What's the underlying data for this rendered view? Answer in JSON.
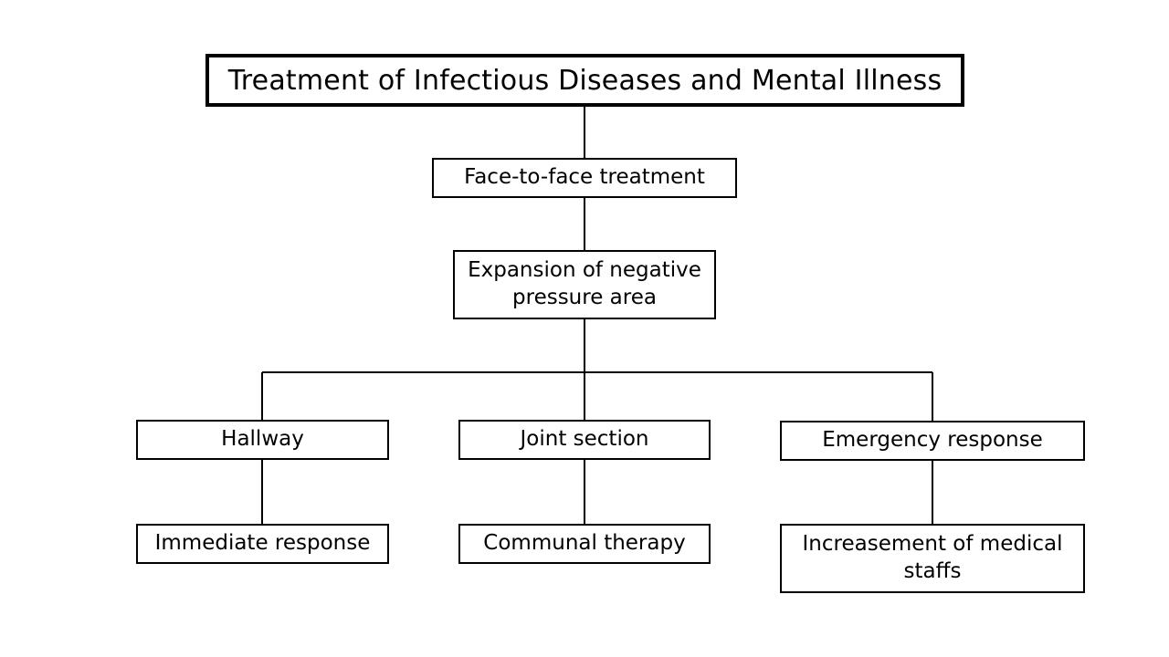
{
  "diagram": {
    "root": "Treatment of Infectious Diseases and Mental Illness",
    "level1": "Face-to-face treatment",
    "level2": "Expansion of negative pressure area",
    "branches": [
      {
        "name": "Hallway",
        "child": "Immediate response"
      },
      {
        "name": "Joint section",
        "child": "Communal therapy"
      },
      {
        "name": "Emergency response",
        "child": "Increasement of medical staffs"
      }
    ]
  }
}
